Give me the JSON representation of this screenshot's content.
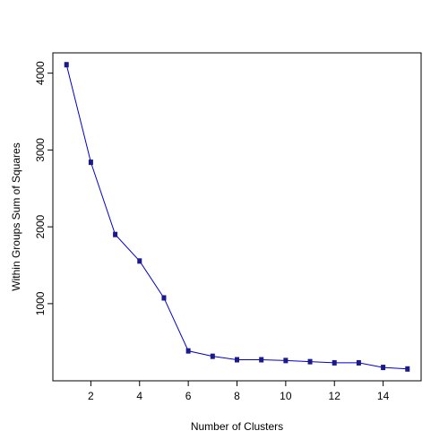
{
  "chart_data": {
    "type": "line",
    "title": "",
    "xlabel": "Number of Clusters",
    "ylabel": "Within Groups Sum of Squares",
    "x": [
      1,
      2,
      3,
      4,
      5,
      6,
      7,
      8,
      9,
      10,
      11,
      12,
      13,
      14,
      15
    ],
    "series": [
      {
        "values": [
          4110,
          2840,
          1900,
          1555,
          1075,
          385,
          315,
          270,
          270,
          260,
          245,
          230,
          230,
          170,
          150
        ],
        "line_color": "#0000cc",
        "marker_color": "#1a1a8c",
        "marker": "square"
      }
    ],
    "xlim": [
      0.44,
      15.56
    ],
    "ylim": [
      -4,
      4264
    ],
    "xticks": [
      2,
      4,
      6,
      8,
      10,
      12,
      14
    ],
    "xtick_labels": [
      "2",
      "4",
      "6",
      "8",
      "10",
      "12",
      "14"
    ],
    "yticks": [
      1000,
      2000,
      3000,
      4000
    ],
    "ytick_labels": [
      "1000",
      "2000",
      "3000",
      "4000"
    ],
    "grid": false,
    "legend": "none",
    "plot_border": true
  }
}
